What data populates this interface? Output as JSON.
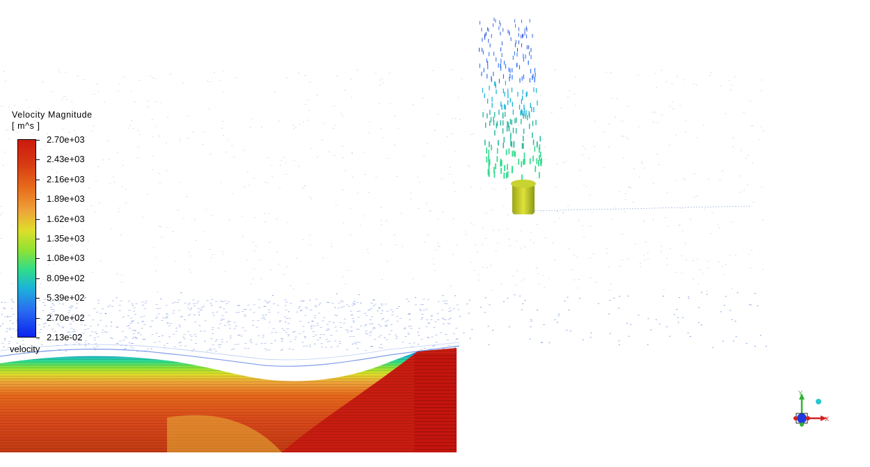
{
  "legend": {
    "title": "Velocity Magnitude",
    "unit": "[ m^s ]",
    "ticks": [
      "2.70e+03",
      "2.43e+03",
      "2.16e+03",
      "1.89e+03",
      "1.62e+03",
      "1.35e+03",
      "1.08e+03",
      "8.09e+02",
      "5.39e+02",
      "2.70e+02",
      "2.13e-02"
    ],
    "variable": "velocity"
  },
  "axes": {
    "x_label": "X",
    "y_label": "Y"
  },
  "colors": {
    "max": "#cc1a0f",
    "mid": "#dede2a",
    "min": "#0c23ee"
  }
}
